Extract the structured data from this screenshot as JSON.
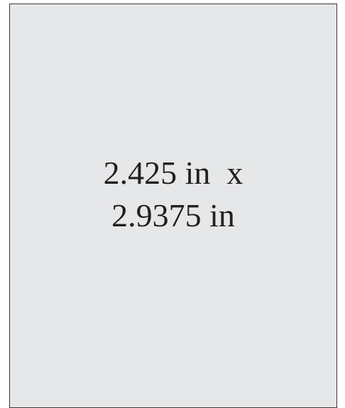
{
  "placeholder": {
    "lines": [
      "2.425 in  x",
      "2.9375 in"
    ]
  }
}
